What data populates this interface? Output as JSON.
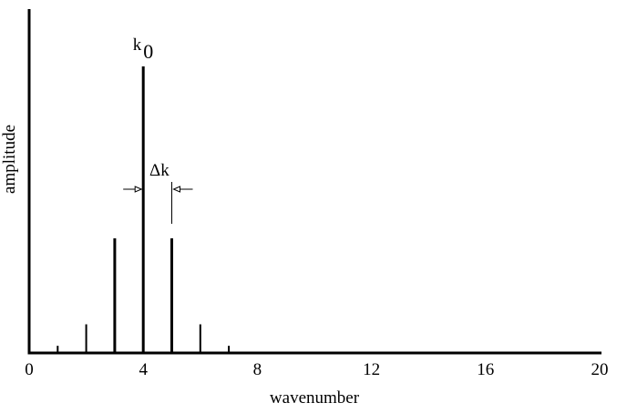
{
  "chart_data": {
    "type": "stem",
    "x_label": "wavenumber",
    "y_label": "amplitude",
    "x": [
      1,
      2,
      3,
      4,
      5,
      6,
      7
    ],
    "values": [
      0.025,
      0.1,
      0.4,
      1.0,
      0.4,
      0.1,
      0.025
    ],
    "color": "#000000",
    "xlim": [
      0,
      20
    ],
    "xticks": [
      0,
      4,
      8,
      12,
      16,
      20
    ],
    "ylim": [
      0,
      1.2
    ],
    "peak_label": "k",
    "peak_label_subscript": "0",
    "spacing_label": "Δk"
  }
}
